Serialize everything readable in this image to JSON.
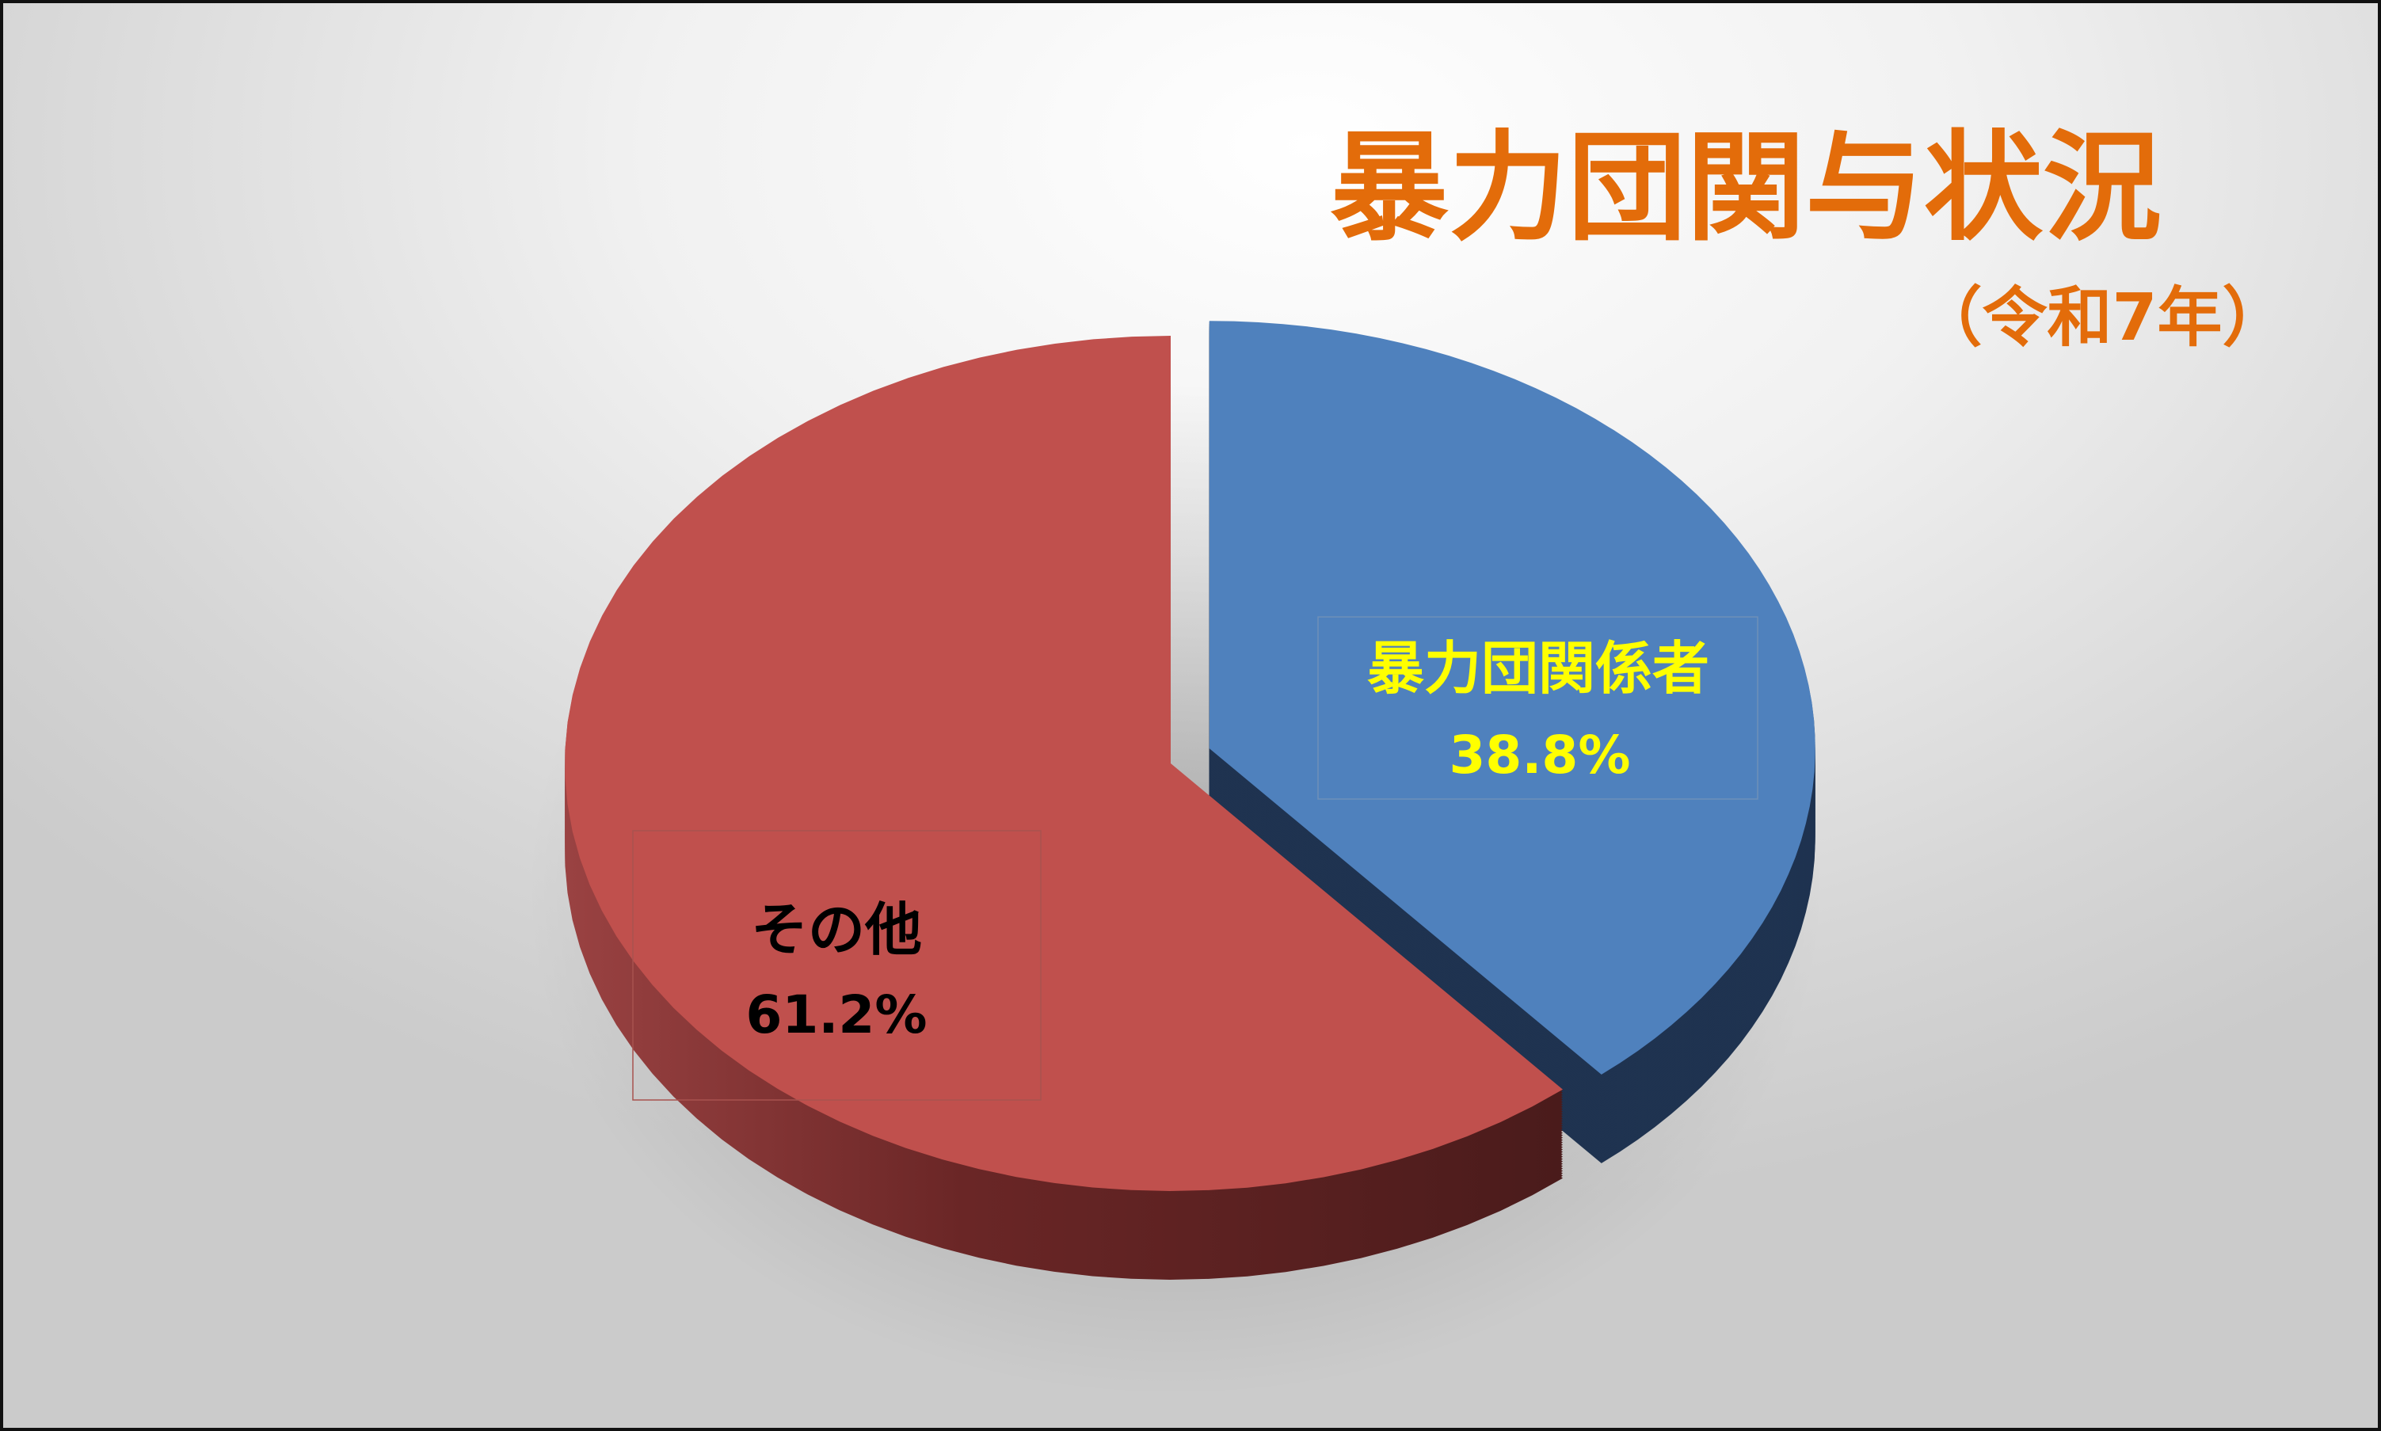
{
  "chart_data": {
    "type": "pie",
    "style": "3d-exploded",
    "title": "暴力団関与状況",
    "subtitle": "（令和7年）",
    "legend": "none",
    "slices": [
      {
        "label": "暴力団関係者",
        "value": 38.8,
        "value_label": "38.8%",
        "color": "#4f81bd",
        "side_color": "#1f3350",
        "label_color": "#ffff00",
        "exploded": true
      },
      {
        "label": "その他",
        "value": 61.2,
        "value_label": "61.2%",
        "color": "#c0504d",
        "side_color": "#4f1c1c",
        "label_color": "#000000",
        "exploded": false
      }
    ],
    "title_color": "#e36c0a"
  }
}
